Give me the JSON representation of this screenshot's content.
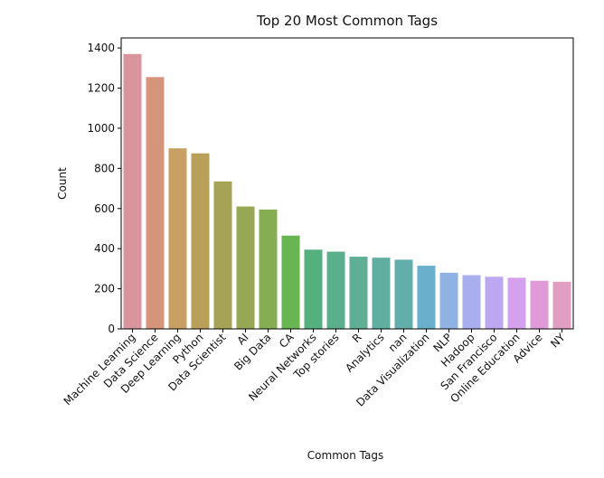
{
  "chart_data": {
    "type": "bar",
    "title": "Top 20 Most Common Tags",
    "xlabel": "Common Tags",
    "ylabel": "Count",
    "ylim": [
      0,
      1450
    ],
    "yticks": [
      0,
      200,
      400,
      600,
      800,
      1000,
      1200,
      1400
    ],
    "grid": false,
    "categories": [
      "Machine Learning",
      "Data Science",
      "Deep Learning",
      "Python",
      "Data Scientist",
      "AI",
      "Big Data",
      "CA",
      "Neural Networks",
      "Top stories",
      "R",
      "Analytics",
      "nan",
      "Data Visualization",
      "NLP",
      "Hadoop",
      "San Francisco",
      "Online Education",
      "Advice",
      "NY"
    ],
    "values": [
      1370,
      1255,
      900,
      875,
      735,
      610,
      595,
      465,
      395,
      385,
      360,
      355,
      345,
      315,
      280,
      268,
      260,
      255,
      240,
      235
    ],
    "colors": [
      "#d8959e",
      "#d5957a",
      "#c9a063",
      "#b8a05a",
      "#a6a356",
      "#97a854",
      "#86ad52",
      "#69b453",
      "#55b07f",
      "#5baf8d",
      "#5eaf95",
      "#5fae9f",
      "#62aeac",
      "#6ab0cd",
      "#8fb2e3",
      "#a9aeee",
      "#bba8f0",
      "#d5a0ee",
      "#e09ad8",
      "#e09ec2"
    ]
  }
}
